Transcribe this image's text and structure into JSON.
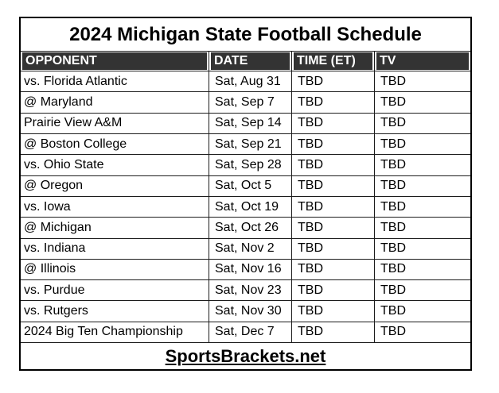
{
  "page": {
    "background": "#ffffff"
  },
  "schedule_table": {
    "title": "2024 Michigan State Football Schedule",
    "columns": [
      {
        "key": "opponent",
        "label": "OPPONENT"
      },
      {
        "key": "date",
        "label": "DATE"
      },
      {
        "key": "time",
        "label": "TIME (ET)"
      },
      {
        "key": "tv",
        "label": "TV"
      }
    ],
    "rows": [
      {
        "opponent": "vs. Florida Atlantic",
        "date": "Sat, Aug 31",
        "time": "TBD",
        "tv": "TBD"
      },
      {
        "opponent": "@ Maryland",
        "date": "Sat, Sep 7",
        "time": "TBD",
        "tv": "TBD"
      },
      {
        "opponent": "Prairie View A&M",
        "date": "Sat, Sep 14",
        "time": "TBD",
        "tv": "TBD"
      },
      {
        "opponent": "@ Boston College",
        "date": "Sat, Sep 21",
        "time": "TBD",
        "tv": "TBD"
      },
      {
        "opponent": "vs. Ohio State",
        "date": "Sat, Sep 28",
        "time": "TBD",
        "tv": "TBD"
      },
      {
        "opponent": "@ Oregon",
        "date": "Sat, Oct 5",
        "time": "TBD",
        "tv": "TBD"
      },
      {
        "opponent": "vs. Iowa",
        "date": "Sat, Oct 19",
        "time": "TBD",
        "tv": "TBD"
      },
      {
        "opponent": "@ Michigan",
        "date": "Sat, Oct 26",
        "time": "TBD",
        "tv": "TBD"
      },
      {
        "opponent": "vs. Indiana",
        "date": "Sat, Nov 2",
        "time": "TBD",
        "tv": "TBD"
      },
      {
        "opponent": "@ Illinois",
        "date": "Sat, Nov 16",
        "time": "TBD",
        "tv": "TBD"
      },
      {
        "opponent": "vs. Purdue",
        "date": "Sat, Nov 23",
        "time": "TBD",
        "tv": "TBD"
      },
      {
        "opponent": "vs. Rutgers",
        "date": "Sat, Nov 30",
        "time": "TBD",
        "tv": "TBD"
      },
      {
        "opponent": "2024 Big Ten Championship",
        "date": "Sat, Dec 7",
        "time": "TBD",
        "tv": "TBD"
      }
    ],
    "footer": {
      "link_label": "SportsBrackets.net"
    },
    "colors": {
      "header_bg": "#333333",
      "header_text": "#ffffff",
      "grid_line": "#1c1c1c",
      "outer_border": "#000000",
      "text": "#000000"
    }
  }
}
